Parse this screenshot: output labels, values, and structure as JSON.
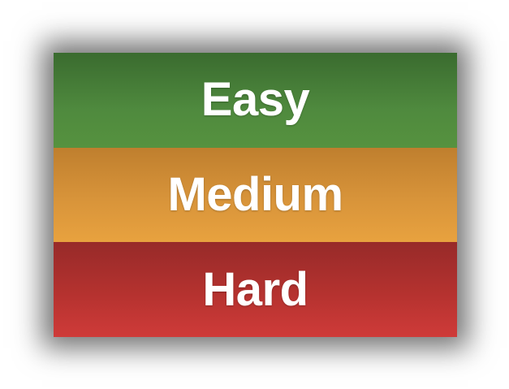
{
  "difficulty": {
    "options": [
      {
        "label": "Easy",
        "color": "#4f8a3e"
      },
      {
        "label": "Medium",
        "color": "#d8943a"
      },
      {
        "label": "Hard",
        "color": "#b5322f"
      }
    ]
  }
}
